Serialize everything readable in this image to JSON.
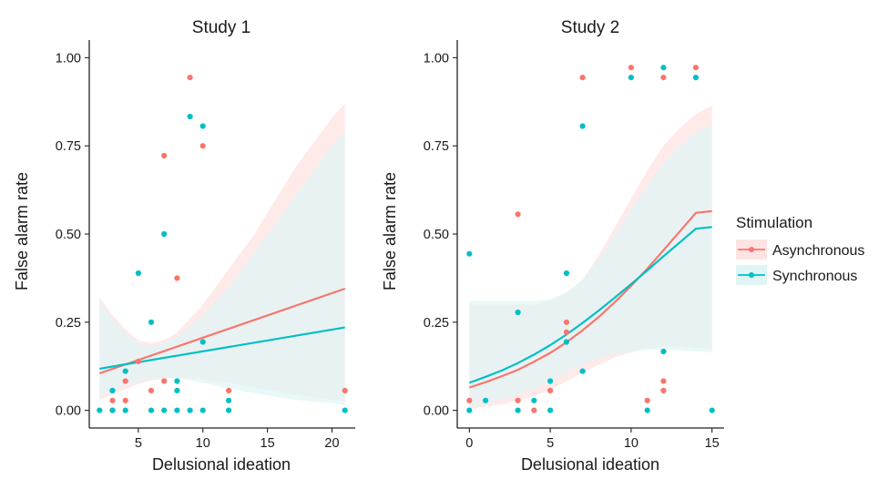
{
  "chart_data": [
    {
      "type": "scatter",
      "title": "Study 1",
      "xlabel": "Delusional ideation",
      "ylabel": "False alarm rate",
      "xlim": [
        1.2,
        21.8
      ],
      "ylim": [
        -0.05,
        1.05
      ],
      "xticks": [
        5,
        10,
        15,
        20
      ],
      "yticks": [
        0.0,
        0.25,
        0.5,
        0.75,
        1.0
      ],
      "xtick_labels": [
        "5",
        "10",
        "15",
        "20"
      ],
      "ytick_labels": [
        "0.00",
        "0.25",
        "0.50",
        "0.75",
        "1.00"
      ],
      "grid": false,
      "series": [
        {
          "name": "Asynchronous",
          "color": "#F8766D",
          "points": [
            [
              3,
              0.028
            ],
            [
              3,
              0.0
            ],
            [
              4,
              0.083
            ],
            [
              4,
              0.028
            ],
            [
              5,
              0.139
            ],
            [
              6,
              0.056
            ],
            [
              7,
              0.722
            ],
            [
              7,
              0.083
            ],
            [
              8,
              0.375
            ],
            [
              9,
              0.944
            ],
            [
              10,
              0.75
            ],
            [
              12,
              0.056
            ],
            [
              21,
              0.056
            ]
          ],
          "fit": {
            "x": [
              2,
              21
            ],
            "y": [
              0.105,
              0.345
            ]
          },
          "ci": {
            "x": [
              2,
              3,
              4,
              5,
              6,
              7,
              8,
              9,
              10,
              11,
              12,
              13,
              14,
              15,
              16,
              17,
              18,
              19,
              20,
              21
            ],
            "lower": [
              0.03,
              0.045,
              0.06,
              0.075,
              0.085,
              0.09,
              0.092,
              0.09,
              0.087,
              0.082,
              0.078,
              0.072,
              0.065,
              0.058,
              0.052,
              0.046,
              0.04,
              0.035,
              0.03,
              0.025
            ],
            "upper": [
              0.32,
              0.27,
              0.23,
              0.2,
              0.19,
              0.2,
              0.22,
              0.26,
              0.3,
              0.35,
              0.4,
              0.45,
              0.5,
              0.56,
              0.62,
              0.68,
              0.73,
              0.78,
              0.83,
              0.87
            ]
          }
        },
        {
          "name": "Synchronous",
          "color": "#00BFC4",
          "points": [
            [
              2,
              0.0
            ],
            [
              3,
              0.056
            ],
            [
              3,
              0.0
            ],
            [
              4,
              0.111
            ],
            [
              4,
              0.0
            ],
            [
              5,
              0.389
            ],
            [
              6,
              0.25
            ],
            [
              6,
              0.0
            ],
            [
              7,
              0.5
            ],
            [
              7,
              0.0
            ],
            [
              8,
              0.083
            ],
            [
              8,
              0.056
            ],
            [
              8,
              0.0
            ],
            [
              9,
              0.833
            ],
            [
              9,
              0.0
            ],
            [
              10,
              0.806
            ],
            [
              10,
              0.194
            ],
            [
              10,
              0.0
            ],
            [
              12,
              0.028
            ],
            [
              12,
              0.0
            ],
            [
              21,
              0.0
            ]
          ],
          "fit": {
            "x": [
              2,
              21
            ],
            "y": [
              0.118,
              0.235
            ]
          },
          "ci": {
            "x": [
              2,
              3,
              4,
              5,
              6,
              7,
              8,
              9,
              10,
              11,
              12,
              13,
              14,
              15,
              16,
              17,
              18,
              19,
              20,
              21
            ],
            "lower": [
              0.04,
              0.055,
              0.07,
              0.08,
              0.09,
              0.092,
              0.09,
              0.085,
              0.078,
              0.07,
              0.062,
              0.055,
              0.048,
              0.042,
              0.036,
              0.031,
              0.027,
              0.023,
              0.02,
              0.017
            ],
            "upper": [
              0.31,
              0.26,
              0.22,
              0.19,
              0.18,
              0.19,
              0.21,
              0.24,
              0.27,
              0.31,
              0.35,
              0.4,
              0.45,
              0.5,
              0.55,
              0.6,
              0.65,
              0.7,
              0.75,
              0.79
            ]
          }
        }
      ]
    },
    {
      "type": "scatter",
      "title": "Study 2",
      "xlabel": "Delusional ideation",
      "ylabel": "False alarm rate",
      "xlim": [
        -0.75,
        15.75
      ],
      "ylim": [
        -0.05,
        1.05
      ],
      "xticks": [
        0,
        5,
        10,
        15
      ],
      "yticks": [
        0.0,
        0.25,
        0.5,
        0.75,
        1.0
      ],
      "xtick_labels": [
        "0",
        "5",
        "10",
        "15"
      ],
      "ytick_labels": [
        "0.00",
        "0.25",
        "0.50",
        "0.75",
        "1.00"
      ],
      "grid": false,
      "series": [
        {
          "name": "Asynchronous",
          "color": "#F8766D",
          "points": [
            [
              0,
              0.028
            ],
            [
              3,
              0.556
            ],
            [
              3,
              0.028
            ],
            [
              4,
              0.0
            ],
            [
              5,
              0.056
            ],
            [
              6,
              0.25
            ],
            [
              6,
              0.222
            ],
            [
              7,
              0.944
            ],
            [
              10,
              0.972
            ],
            [
              11,
              0.028
            ],
            [
              12,
              0.944
            ],
            [
              12,
              0.083
            ],
            [
              12,
              0.056
            ],
            [
              14,
              0.972
            ]
          ],
          "fit": {
            "x": [
              0,
              1,
              2,
              3,
              4,
              5,
              6,
              7,
              8,
              9,
              10,
              11,
              12,
              13,
              14,
              15
            ],
            "y": [
              0.065,
              0.08,
              0.097,
              0.115,
              0.138,
              0.163,
              0.193,
              0.227,
              0.265,
              0.307,
              0.353,
              0.402,
              0.454,
              0.507,
              0.56,
              0.565
            ]
          },
          "ci": {
            "x": [
              0,
              1,
              2,
              3,
              4,
              5,
              6,
              7,
              8,
              9,
              10,
              11,
              12,
              13,
              14,
              15
            ],
            "lower": [
              0.005,
              0.01,
              0.017,
              0.027,
              0.04,
              0.058,
              0.082,
              0.107,
              0.13,
              0.15,
              0.165,
              0.175,
              0.18,
              0.18,
              0.178,
              0.175
            ],
            "upper": [
              0.3,
              0.3,
              0.3,
              0.3,
              0.3,
              0.31,
              0.33,
              0.37,
              0.44,
              0.52,
              0.6,
              0.68,
              0.75,
              0.8,
              0.84,
              0.865
            ]
          }
        },
        {
          "name": "Synchronous",
          "color": "#00BFC4",
          "points": [
            [
              0,
              0.444
            ],
            [
              0,
              0.0
            ],
            [
              1,
              0.028
            ],
            [
              3,
              0.278
            ],
            [
              3,
              0.0
            ],
            [
              4,
              0.028
            ],
            [
              5,
              0.083
            ],
            [
              5,
              0.0
            ],
            [
              6,
              0.389
            ],
            [
              6,
              0.194
            ],
            [
              7,
              0.806
            ],
            [
              7,
              0.111
            ],
            [
              10,
              0.944
            ],
            [
              11,
              0.0
            ],
            [
              12,
              0.972
            ],
            [
              12,
              0.167
            ],
            [
              14,
              0.944
            ],
            [
              15,
              0.0
            ]
          ],
          "fit": {
            "x": [
              0,
              1,
              2,
              3,
              4,
              5,
              6,
              7,
              8,
              9,
              10,
              11,
              12,
              13,
              14,
              15
            ],
            "y": [
              0.078,
              0.095,
              0.113,
              0.134,
              0.158,
              0.185,
              0.215,
              0.248,
              0.283,
              0.32,
              0.358,
              0.397,
              0.437,
              0.476,
              0.515,
              0.52
            ]
          },
          "ci": {
            "x": [
              0,
              1,
              2,
              3,
              4,
              5,
              6,
              7,
              8,
              9,
              10,
              11,
              12,
              13,
              14,
              15
            ],
            "lower": [
              0.012,
              0.02,
              0.03,
              0.044,
              0.062,
              0.084,
              0.108,
              0.13,
              0.148,
              0.16,
              0.168,
              0.172,
              0.172,
              0.17,
              0.167,
              0.165
            ],
            "upper": [
              0.31,
              0.31,
              0.31,
              0.31,
              0.31,
              0.315,
              0.335,
              0.37,
              0.43,
              0.5,
              0.57,
              0.64,
              0.7,
              0.75,
              0.79,
              0.81
            ]
          }
        }
      ]
    }
  ],
  "legend": {
    "title": "Stimulation",
    "items": [
      {
        "label": "Asynchronous",
        "color": "#F8766D"
      },
      {
        "label": "Synchronous",
        "color": "#00BFC4"
      }
    ]
  }
}
